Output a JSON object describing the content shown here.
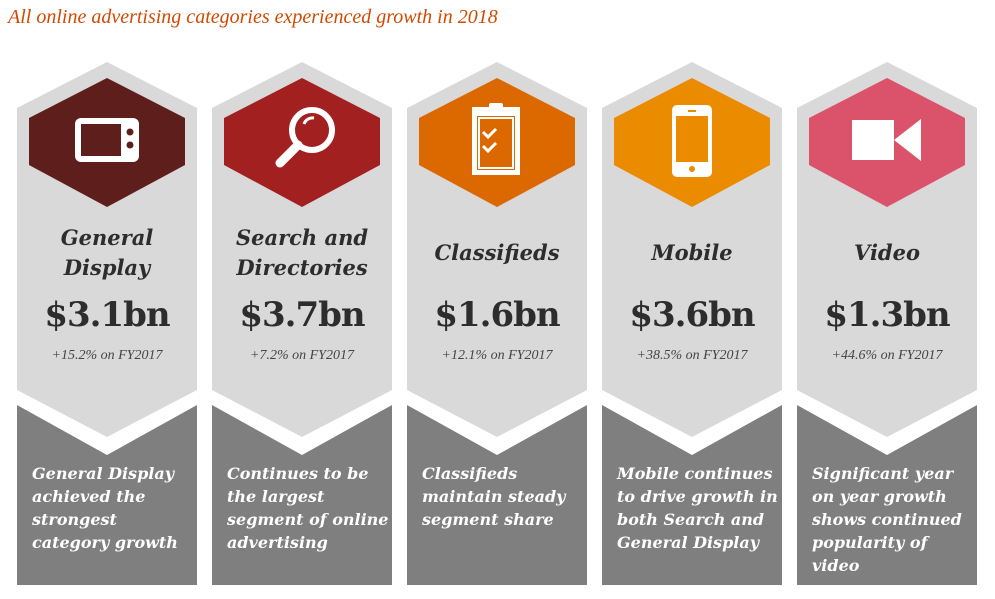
{
  "title": "All online advertising categories experienced growth in 2018",
  "categories": [
    {
      "name": "General Display",
      "amount": "$3.1bn",
      "growth": "+15.2% on FY2017",
      "description": "General Display achieved the strongest category growth",
      "color": "#5e1f1c",
      "icon": "tv-icon"
    },
    {
      "name": "Search and Directories",
      "amount": "$3.7bn",
      "growth": "+7.2% on FY2017",
      "description": "Continues to be the largest segment of online advertising",
      "color": "#a32020",
      "icon": "magnifier-icon"
    },
    {
      "name": "Classifieds",
      "amount": "$1.6bn",
      "growth": "+12.1% on FY2017",
      "description": "Classifieds maintain steady segment share",
      "color": "#dc6900",
      "icon": "clipboard-icon"
    },
    {
      "name": "Mobile",
      "amount": "$3.6bn",
      "growth": "+38.5% on FY2017",
      "description": "Mobile continues to drive growth in both Search and General Display",
      "color": "#eb8c00",
      "icon": "smartphone-icon"
    },
    {
      "name": "Video",
      "amount": "$1.3bn",
      "growth": "+44.6% on FY2017",
      "description": "Significant year on year growth shows continued popularity of video",
      "color": "#db536a",
      "icon": "video-camera-icon"
    }
  ]
}
